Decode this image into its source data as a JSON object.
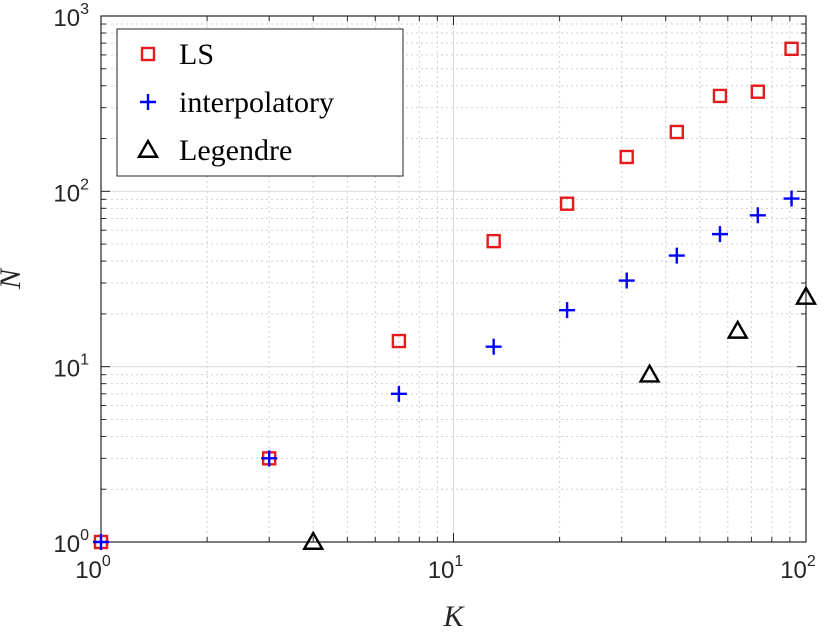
{
  "chart_data": {
    "type": "scatter",
    "title": "",
    "xlabel": "K",
    "ylabel": "N",
    "xscale": "log",
    "yscale": "log",
    "xlim": [
      1,
      100
    ],
    "ylim": [
      1,
      1000
    ],
    "grid": true,
    "minor_grid": true,
    "legend_position": "top-left",
    "x_ticks": [
      {
        "base": "10",
        "exp": "0",
        "value": 1
      },
      {
        "base": "10",
        "exp": "1",
        "value": 10
      },
      {
        "base": "10",
        "exp": "2",
        "value": 100
      }
    ],
    "y_ticks": [
      {
        "base": "10",
        "exp": "0",
        "value": 1
      },
      {
        "base": "10",
        "exp": "1",
        "value": 10
      },
      {
        "base": "10",
        "exp": "2",
        "value": 100
      },
      {
        "base": "10",
        "exp": "3",
        "value": 1000
      }
    ],
    "series": [
      {
        "name": "LS",
        "marker": "square",
        "color": "#e41a1c",
        "points": [
          [
            1,
            1
          ],
          [
            3,
            3
          ],
          [
            7,
            14
          ],
          [
            13,
            52
          ],
          [
            21,
            85
          ],
          [
            31,
            157
          ],
          [
            43,
            218
          ],
          [
            57,
            350
          ],
          [
            73,
            370
          ],
          [
            91,
            650
          ]
        ]
      },
      {
        "name": "interpolatory",
        "marker": "plus",
        "color": "#0000ff",
        "points": [
          [
            1,
            1
          ],
          [
            3,
            3
          ],
          [
            7,
            7
          ],
          [
            13,
            13
          ],
          [
            21,
            21
          ],
          [
            31,
            31
          ],
          [
            43,
            43
          ],
          [
            57,
            57
          ],
          [
            73,
            73
          ],
          [
            91,
            91
          ]
        ]
      },
      {
        "name": "Legendre",
        "marker": "triangle",
        "color": "#000000",
        "points": [
          [
            4,
            1
          ],
          [
            36,
            9
          ],
          [
            64,
            16
          ],
          [
            100,
            25
          ]
        ]
      }
    ]
  }
}
